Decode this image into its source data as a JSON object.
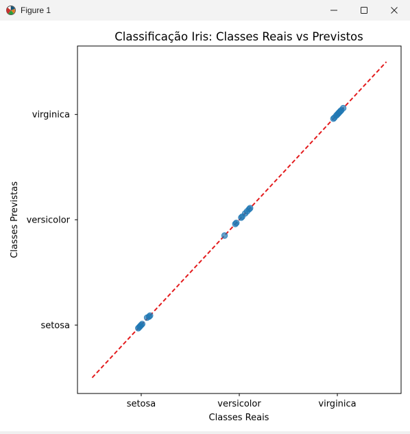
{
  "window": {
    "title": "Figure 1",
    "icon": "matplotlib-figure-icon",
    "controls": {
      "minimize": "minimize-icon",
      "maximize": "maximize-icon",
      "close": "close-icon"
    }
  },
  "chart_data": {
    "type": "scatter",
    "title": "Classificação Iris: Classes Reais vs Previstos",
    "xlabel": "Classes Reais",
    "ylabel": "Classes Previstas",
    "x_ticks": [
      {
        "value": 0,
        "label": "setosa"
      },
      {
        "value": 1,
        "label": "versicolor"
      },
      {
        "value": 2,
        "label": "virginica"
      }
    ],
    "y_ticks": [
      {
        "value": 0,
        "label": "setosa"
      },
      {
        "value": 1,
        "label": "versicolor"
      },
      {
        "value": 2,
        "label": "virginica"
      }
    ],
    "xlim": [
      -0.65,
      2.65
    ],
    "ylim": [
      -0.65,
      2.65
    ],
    "grid": false,
    "points_color": "#1f77b4",
    "reference_line": {
      "style": "dashed",
      "color": "#e31a1c",
      "from": [
        -0.5,
        -0.5
      ],
      "to": [
        2.5,
        2.5
      ]
    },
    "points": [
      {
        "x": -0.03,
        "y": -0.03
      },
      {
        "x": -0.02,
        "y": -0.02
      },
      {
        "x": -0.01,
        "y": -0.01
      },
      {
        "x": 0.0,
        "y": 0.0
      },
      {
        "x": 0.01,
        "y": 0.01
      },
      {
        "x": 0.06,
        "y": 0.07
      },
      {
        "x": 0.08,
        "y": 0.08
      },
      {
        "x": 0.09,
        "y": 0.09
      },
      {
        "x": 0.85,
        "y": 0.85
      },
      {
        "x": 0.96,
        "y": 0.96
      },
      {
        "x": 0.97,
        "y": 0.97
      },
      {
        "x": 1.02,
        "y": 1.02
      },
      {
        "x": 1.03,
        "y": 1.03
      },
      {
        "x": 1.06,
        "y": 1.06
      },
      {
        "x": 1.08,
        "y": 1.08
      },
      {
        "x": 1.1,
        "y": 1.1
      },
      {
        "x": 1.11,
        "y": 1.11
      },
      {
        "x": 1.96,
        "y": 1.96
      },
      {
        "x": 1.97,
        "y": 1.97
      },
      {
        "x": 1.99,
        "y": 1.99
      },
      {
        "x": 2.0,
        "y": 2.0
      },
      {
        "x": 2.01,
        "y": 2.01
      },
      {
        "x": 2.02,
        "y": 2.02
      },
      {
        "x": 2.03,
        "y": 2.03
      },
      {
        "x": 2.04,
        "y": 2.04
      },
      {
        "x": 2.06,
        "y": 2.06
      }
    ]
  }
}
